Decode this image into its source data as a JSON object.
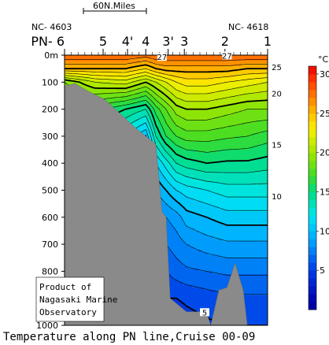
{
  "chart_data": {
    "type": "heatmap",
    "title": "",
    "caption": "Temperature along PN line,Cruise 00-09",
    "credit": [
      "Product of",
      "Nagasaki Marine",
      "Observatory"
    ],
    "scale_bar_label": "60N.Miles",
    "end_labels": {
      "left": "NC- 4603",
      "right": "NC- 4618"
    },
    "stations": [
      "PN- 6",
      "5",
      "4'",
      "4",
      "3'",
      "3",
      "2",
      "1"
    ],
    "station_positions": [
      0.0,
      0.19,
      0.31,
      0.4,
      0.51,
      0.59,
      0.79,
      1.0
    ],
    "y_axis": {
      "label": "",
      "unit_first_tick": "0m",
      "ticks": [
        0,
        100,
        200,
        300,
        400,
        500,
        600,
        700,
        800,
        900,
        1000
      ],
      "range": [
        0,
        1000
      ],
      "inverted": true
    },
    "colorbar": {
      "unit": "°C",
      "ticks": [
        5,
        10,
        15,
        20,
        25,
        30
      ],
      "range": [
        0,
        31
      ]
    },
    "contour_labels": [
      {
        "value": "27",
        "x": 0.48,
        "depth": 15
      },
      {
        "value": "27",
        "x": 0.8,
        "depth": 10
      },
      {
        "value": "25",
        "x": 1.02,
        "depth": 52
      },
      {
        "value": "20",
        "x": 1.02,
        "depth": 150
      },
      {
        "value": "15",
        "x": 1.02,
        "depth": 340
      },
      {
        "value": "10",
        "x": 1.02,
        "depth": 530
      },
      {
        "value": "5",
        "x": 0.69,
        "depth": 960
      }
    ],
    "temperature_profiles": {
      "x": [
        0.0,
        0.15,
        0.3,
        0.4,
        0.45,
        0.5,
        0.55,
        0.6,
        0.7,
        0.8,
        0.9,
        1.0
      ],
      "depths": [
        0,
        50,
        100,
        200,
        300,
        400,
        500,
        600,
        700,
        800,
        900,
        1000
      ],
      "values": [
        [
          28,
          28,
          28,
          27.5,
          28,
          28,
          28,
          28,
          28,
          28,
          28,
          28
        ],
        [
          25,
          25,
          25,
          24,
          25,
          25.5,
          25.5,
          25.5,
          25.5,
          25.5,
          25,
          25
        ],
        [
          19,
          21,
          21.5,
          20,
          21,
          22,
          23,
          23.5,
          23.5,
          23,
          22.5,
          22
        ],
        [
          17,
          16.5,
          15,
          14,
          16.5,
          18,
          19.5,
          20,
          20,
          19.5,
          19,
          19
        ],
        [
          15,
          14,
          12,
          10,
          14,
          16,
          17,
          17.5,
          17.5,
          17.2,
          17,
          16.5
        ],
        [
          12,
          11,
          9,
          8,
          11,
          12.5,
          14,
          14.5,
          15,
          14.8,
          14.8,
          14.5
        ],
        [
          10,
          9,
          7.5,
          7,
          9,
          10,
          11,
          11.5,
          12,
          12.5,
          12.5,
          12.5
        ],
        [
          8,
          8,
          7,
          6.5,
          7.5,
          8,
          8.5,
          9.5,
          10,
          10.5,
          10.5,
          10.5
        ],
        [
          7,
          7,
          6,
          6,
          6.5,
          7,
          7.5,
          8,
          8.5,
          8.8,
          8.8,
          8.8
        ],
        [
          6,
          6,
          5.5,
          5,
          5.5,
          6,
          6.5,
          6.8,
          7,
          7.2,
          7.2,
          7.2
        ],
        [
          5,
          5,
          5,
          4.5,
          4.5,
          5,
          5,
          5.2,
          5.5,
          5.8,
          5.8,
          5.8
        ],
        [
          4.5,
          4.5,
          4.5,
          4,
          4,
          4,
          4.2,
          4.5,
          4.8,
          5,
          5,
          5
        ]
      ]
    },
    "bottom_topography": {
      "x": [
        0.0,
        0.05,
        0.12,
        0.2,
        0.3,
        0.35,
        0.4,
        0.45,
        0.48,
        0.5,
        0.52,
        0.6,
        0.66,
        0.7,
        0.72,
        0.76,
        0.8,
        0.84,
        0.88,
        0.9,
        0.95,
        1.0
      ],
      "depth": [
        115,
        105,
        135,
        165,
        235,
        270,
        300,
        330,
        580,
        600,
        900,
        950,
        950,
        955,
        1000,
        870,
        860,
        770,
        870,
        1000,
        1000,
        1000
      ]
    }
  }
}
